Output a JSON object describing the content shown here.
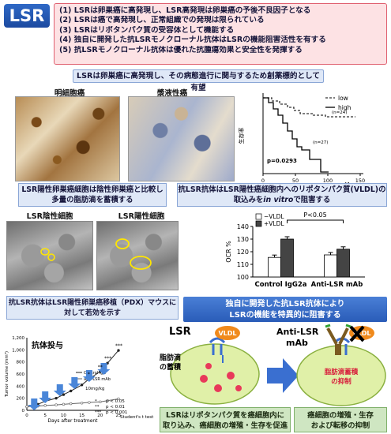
{
  "header": {
    "title": "LSR",
    "points": [
      "(1) LSRは卵巣癌に高発現し、LSR高発現は卵巣癌の予後不良因子となる",
      "(2) LSRは癌で高発現し、正常組織での発現は限られている",
      "(3) LSRはリポタンパク質の受容体として機能する",
      "(4) 独自に開発した抗LSRモノクローナル抗体はLSRの機能阻害活性を有する",
      "(5) 抗LSRモノクローナル抗体は優れた抗腫瘍効果と安全性を発揮する"
    ]
  },
  "banner_top": "LSRは卵巣癌に高発現し、その病態進行に関与するため創薬標的として有望",
  "photos": {
    "left_label": "明細胞癌",
    "right_label": "漿液性癌",
    "caption": "LSR陽性卵巣癌細胞は陰性卵巣癌と比較し多量の脂肪滴を蓄積する",
    "lsr_negative": "LSR陰性細胞",
    "lsr_positive": "LSR陽性細胞",
    "bottom_caption": "抗LSR抗体はLSR陽性卵巣癌移植（PDX）マウスに対して若効を示す"
  },
  "survival_chart": {
    "ylabel": "生存率",
    "xlabel": "month",
    "p_value": "p=0.0293",
    "low_n": "(n=24)",
    "high_n": "(n=27)",
    "x_ticks": [
      "0",
      "50",
      "100",
      "150"
    ],
    "legend_low": "low",
    "legend_high": "high"
  },
  "vldl_caption_prefix": "抗LSR抗体はLSR陽性癌細胞内へのリポタンパク質(VLDL)の取込みを",
  "vldl_caption_emph": "in vitro",
  "vldl_caption_suffix": "で阻害する",
  "chart_data": [
    {
      "type": "bar",
      "ylabel": "OCR %",
      "ylim": [
        100,
        140
      ],
      "yticks": [
        "100",
        "110",
        "120",
        "130",
        "140"
      ],
      "categories": [
        "Control IgG2a",
        "Anti-LSR mAb"
      ],
      "series": [
        {
          "name": "−VLDL",
          "values": [
            115.5,
            117.5
          ],
          "color": "#ffffff"
        },
        {
          "name": "+VLDL",
          "values": [
            130,
            122
          ],
          "color": "#444444"
        }
      ],
      "annotation": "P<0.05"
    },
    {
      "type": "line",
      "title": "抗体投与",
      "ylabel": "Tumor volume (mm³)",
      "xlabel": "Days after treatment",
      "ylim": [
        0,
        1200
      ],
      "yticks": [
        "0",
        "200",
        "400",
        "600",
        "800",
        "1,000",
        "1,200"
      ],
      "x_ticks": [
        "0",
        "5",
        "10",
        "15",
        "20",
        "25"
      ],
      "legend": [
        "Control IgG",
        "anti-LSR mAb"
      ],
      "dose": "10mg/kg",
      "series": [
        {
          "name": "Control IgG",
          "x": [
            0,
            3,
            5,
            8,
            10,
            12,
            15,
            17,
            20,
            22,
            25
          ],
          "values": [
            60,
            100,
            150,
            200,
            260,
            320,
            420,
            520,
            640,
            780,
            990
          ]
        },
        {
          "name": "anti-LSR mAb",
          "x": [
            0,
            3,
            5,
            8,
            10,
            12,
            15,
            17,
            20,
            22,
            25
          ],
          "values": [
            60,
            70,
            80,
            90,
            100,
            110,
            120,
            130,
            140,
            160,
            190
          ]
        }
      ],
      "stats": [
        "*",
        "**",
        "***"
      ],
      "stats_labels": [
        "p < 0.05",
        "p < 0.01",
        "p < 0.001"
      ],
      "stats_note": "Student's t test"
    }
  ],
  "blue_callout": [
    "独自に開発した抗LSR抗体により",
    "LSRの機能を特異的に阻害する"
  ],
  "mechanism": {
    "lsr_label": "LSR",
    "vldl": "VLDL",
    "fat_label_1": "脂肪滴",
    "fat_label_2": "の蓄積",
    "anti_lsr_1": "Anti-LSR",
    "anti_lsr_2": "mAb",
    "inhibit_1": "脂肪滴蓄積",
    "inhibit_2": "の抑制",
    "left_caption": [
      "LSRはリポタンパク質を癌細胞内に",
      "取り込み、癌細胞の増殖・生存を促進"
    ],
    "right_caption": [
      "癌細胞の増殖・生存",
      "および転移の抑制"
    ]
  },
  "colors": {
    "header_blue": "#1c4aa0",
    "points_bg": "#fde2e4",
    "cell_green": "#e0f0a8",
    "droplet_red": "#e8395a",
    "vldl_orange": "#f08a1c",
    "arrow_blue": "#3a6fd0"
  }
}
